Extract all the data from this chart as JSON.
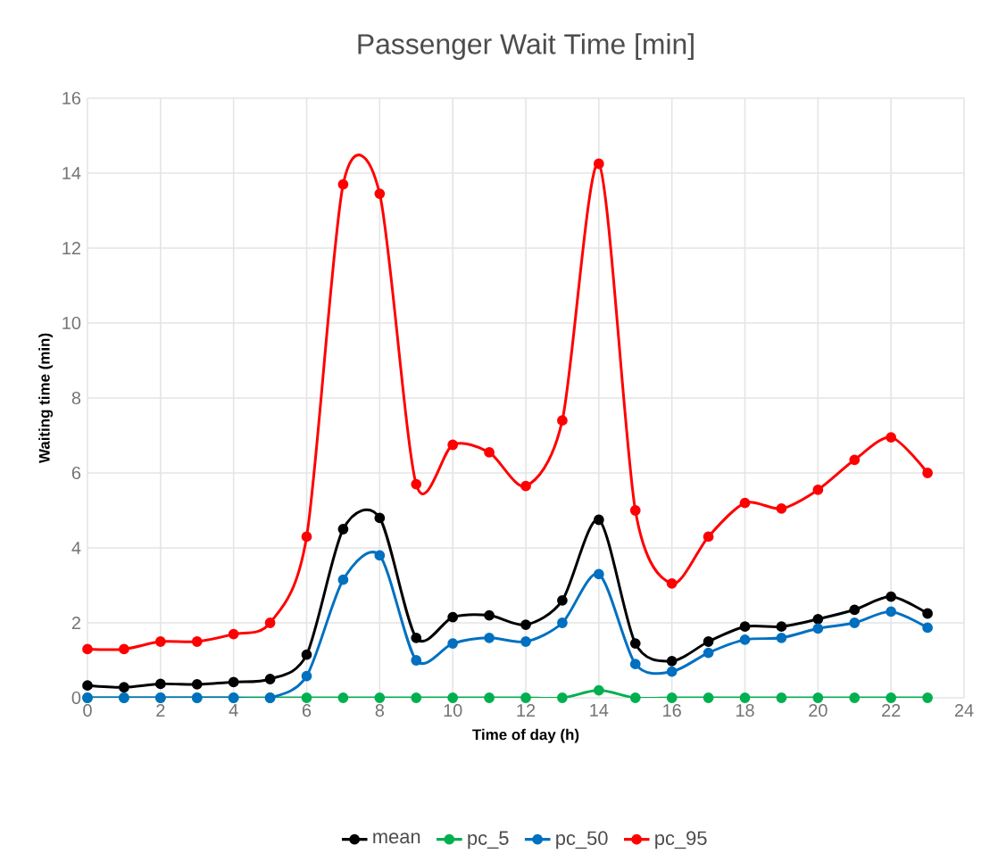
{
  "chart_data": {
    "type": "line",
    "title": "Passenger Wait Time [min]",
    "xlabel": "Time of day (h)",
    "ylabel": "Waiting time (min)",
    "x": [
      0,
      1,
      2,
      3,
      4,
      5,
      6,
      7,
      8,
      9,
      10,
      11,
      12,
      13,
      14,
      15,
      16,
      17,
      18,
      19,
      20,
      21,
      22,
      23
    ],
    "series": [
      {
        "name": "mean",
        "color": "#000000",
        "values": [
          0.33,
          0.28,
          0.37,
          0.36,
          0.42,
          0.5,
          1.15,
          4.5,
          4.8,
          1.6,
          2.15,
          2.2,
          1.95,
          2.6,
          4.75,
          1.45,
          0.98,
          1.5,
          1.9,
          1.9,
          2.1,
          2.35,
          2.7,
          2.25
        ]
      },
      {
        "name": "pc_5",
        "color": "#00b050",
        "values": [
          0,
          0,
          0,
          0,
          0,
          0,
          0,
          0,
          0,
          0,
          0,
          0,
          0,
          0,
          0.2,
          0,
          0,
          0,
          0,
          0,
          0,
          0,
          0,
          0
        ]
      },
      {
        "name": "pc_50",
        "color": "#0070c0",
        "values": [
          0,
          0,
          0,
          0,
          0,
          0,
          0.58,
          3.15,
          3.8,
          1.0,
          1.45,
          1.6,
          1.5,
          2.0,
          3.3,
          0.9,
          0.7,
          1.2,
          1.55,
          1.6,
          1.85,
          2.0,
          2.3,
          1.87
        ]
      },
      {
        "name": "pc_95",
        "color": "#ff0000",
        "values": [
          1.3,
          1.3,
          1.5,
          1.5,
          1.7,
          2.0,
          4.3,
          13.7,
          13.45,
          5.7,
          6.75,
          6.55,
          5.65,
          7.4,
          14.25,
          5.0,
          3.05,
          4.3,
          5.2,
          5.05,
          5.55,
          6.35,
          6.95,
          6.0
        ]
      }
    ],
    "xlim": [
      0,
      24
    ],
    "xticks": [
      0,
      2,
      4,
      6,
      8,
      10,
      12,
      14,
      16,
      18,
      20,
      22,
      24
    ],
    "ylim": [
      0,
      16
    ],
    "yticks": [
      0,
      2,
      4,
      6,
      8,
      10,
      12,
      14,
      16
    ],
    "grid": true,
    "legend": "bottom",
    "marker": "circle",
    "line_style": "solid"
  }
}
